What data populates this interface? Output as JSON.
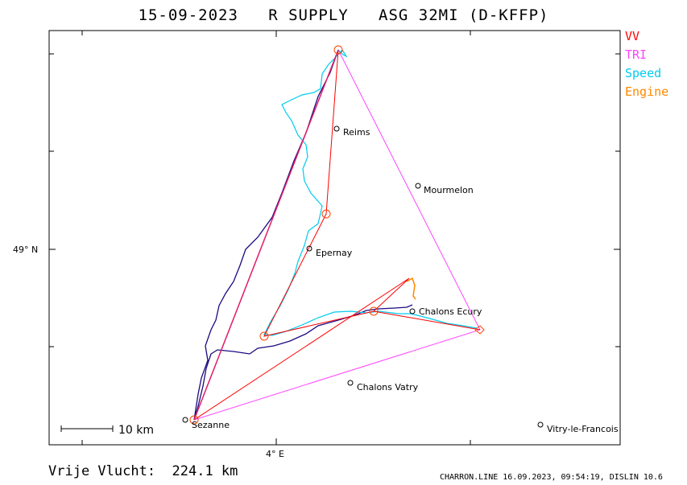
{
  "title": "15-09-2023   R SUPPLY   ASG 32MI (D-KFFP)",
  "legend": [
    {
      "label": "VV",
      "color": "#ff0000"
    },
    {
      "label": "TRI",
      "color": "#ff44ff"
    },
    {
      "label": "Speed",
      "color": "#00ccee"
    },
    {
      "label": "Engine",
      "color": "#ff8800"
    }
  ],
  "axes": {
    "lat_label": "49° N",
    "lon_label": "4° E"
  },
  "places": [
    {
      "name": "Reims"
    },
    {
      "name": "Mourmelon"
    },
    {
      "name": "Epernay"
    },
    {
      "name": "Chalons Ecury"
    },
    {
      "name": "Chalons Vatry"
    },
    {
      "name": "Sezanne"
    },
    {
      "name": "Vitry-le-Francois"
    }
  ],
  "scale": {
    "label": "10 km"
  },
  "footer": {
    "distance_text": "Vrije Vlucht:  224.1 km",
    "credit_text": "CHARRON.LINE 16.09.2023, 09:54:19, DISLIN 10.6"
  }
}
